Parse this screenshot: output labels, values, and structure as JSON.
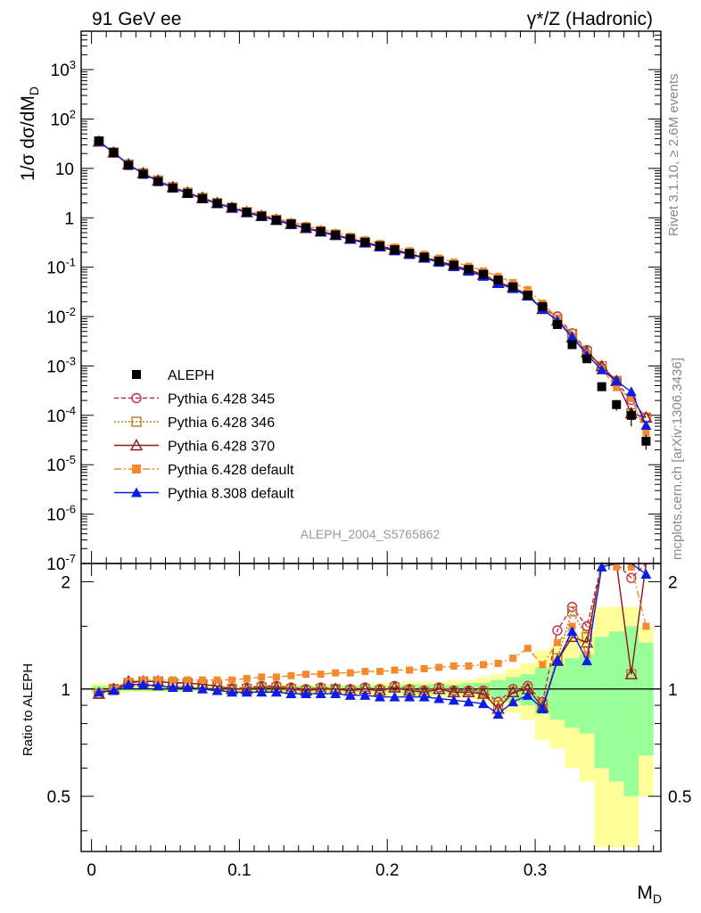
{
  "header": {
    "left_label": "91 GeV ee",
    "right_label": "γ*/Z (Hadronic)",
    "analysis_id": "ALEPH_2004_S5765862",
    "rivet_label": "Rivet 3.1.10, ≥ 2.6M events",
    "mcplots_label": "mcplots.cern.ch [arXiv:1306.3436]"
  },
  "chart_data": {
    "type": "scatter",
    "title": "",
    "xlabel": "M_D",
    "ylabel": "1/σ dσ/dM_D",
    "ratio_ylabel": "Ratio to ALEPH",
    "xlim": [
      -0.007,
      0.385
    ],
    "ylim": [
      1e-07,
      6000
    ],
    "ratio_ylim": [
      0.35,
      2.25
    ],
    "yscale": "log",
    "ratio_yscale": "log",
    "x_ticks": [
      0,
      0.1,
      0.2,
      0.3
    ],
    "x_tick_labels": [
      "0",
      "0.1",
      "0.2",
      "0.3"
    ],
    "y_tick_labels": [
      "10^-7",
      "10^-6",
      "10^-5",
      "10^-4",
      "10^-3",
      "10^-2",
      "10^-1",
      "1",
      "10",
      "10^2",
      "10^3"
    ],
    "ratio_ticks": [
      0.5,
      1,
      2
    ],
    "ratio_tick_labels": [
      "0.5",
      "1",
      "2"
    ],
    "legend_position": "lower-left",
    "x": [
      0.005,
      0.015,
      0.025,
      0.035,
      0.045,
      0.055,
      0.065,
      0.075,
      0.085,
      0.095,
      0.105,
      0.115,
      0.125,
      0.135,
      0.145,
      0.155,
      0.165,
      0.175,
      0.185,
      0.195,
      0.205,
      0.215,
      0.225,
      0.235,
      0.245,
      0.255,
      0.265,
      0.275,
      0.285,
      0.295,
      0.305,
      0.315,
      0.325,
      0.335,
      0.345,
      0.355,
      0.365,
      0.375
    ],
    "series": [
      {
        "name": "ALEPH",
        "color": "#000000",
        "marker": "square-filled",
        "values": [
          36,
          21,
          11.5,
          7.6,
          5.4,
          4.0,
          3.1,
          2.45,
          1.95,
          1.6,
          1.3,
          1.08,
          0.9,
          0.75,
          0.63,
          0.53,
          0.45,
          0.38,
          0.32,
          0.27,
          0.225,
          0.19,
          0.16,
          0.133,
          0.11,
          0.09,
          0.072,
          0.055,
          0.04,
          0.027,
          0.016,
          0.0069,
          0.0027,
          0.0014,
          0.00038,
          0.000165,
          0.0001,
          3e-05
        ],
        "errors": [
          0.8,
          0.4,
          0.2,
          0.12,
          0.08,
          0.06,
          0.05,
          0.04,
          0.03,
          0.025,
          0.02,
          0.017,
          0.014,
          0.012,
          0.01,
          0.009,
          0.008,
          0.007,
          0.006,
          0.005,
          0.004,
          0.0035,
          0.003,
          0.0025,
          0.002,
          0.0018,
          0.0015,
          0.0013,
          0.001,
          0.0008,
          0.0006,
          0.0003,
          0.0002,
          0.00012,
          6e-05,
          4e-05,
          4e-05,
          1e-05
        ]
      },
      {
        "name": "Pythia 6.428 345",
        "color": "#c03048",
        "dash": "5,3",
        "marker": "circle-open",
        "ratio": [
          0.97,
          1.0,
          1.04,
          1.05,
          1.05,
          1.04,
          1.04,
          1.03,
          1.02,
          1.0,
          1.01,
          1.02,
          1.02,
          1.01,
          1.0,
          1.01,
          1.0,
          1.0,
          1.01,
          1.0,
          1.02,
          1.0,
          0.99,
          1.01,
          0.99,
          0.99,
          0.99,
          0.92,
          1.0,
          1.02,
          0.92,
          1.46,
          1.7,
          1.5,
          2.4,
          2.9,
          2.05,
          3.0
        ]
      },
      {
        "name": "Pythia 6.428 346",
        "color": "#b87828",
        "dash": "2,2",
        "marker": "square-open",
        "ratio": [
          0.97,
          1.0,
          1.04,
          1.05,
          1.05,
          1.04,
          1.04,
          1.03,
          1.02,
          1.0,
          1.0,
          1.01,
          1.01,
          1.0,
          0.99,
          1.0,
          1.0,
          0.99,
          1.0,
          0.99,
          1.01,
          0.99,
          0.98,
          1.0,
          0.98,
          0.98,
          0.98,
          0.9,
          0.98,
          1.0,
          0.9,
          1.22,
          1.65,
          1.4,
          2.6,
          3.0,
          1.1,
          3.0
        ]
      },
      {
        "name": "Pythia 6.428 370",
        "color": "#8c1c1c",
        "dash": "",
        "marker": "triangle-open",
        "ratio": [
          0.97,
          1.0,
          1.05,
          1.05,
          1.05,
          1.04,
          1.04,
          1.03,
          1.02,
          1.0,
          1.0,
          1.01,
          1.01,
          1.0,
          0.99,
          1.0,
          1.0,
          0.99,
          1.0,
          0.99,
          1.01,
          0.99,
          0.98,
          1.0,
          0.98,
          0.98,
          0.97,
          0.88,
          0.98,
          1.0,
          0.89,
          1.2,
          1.4,
          1.35,
          2.6,
          3.0,
          1.1,
          3.0
        ]
      },
      {
        "name": "Pythia 6.428 default",
        "color": "#f58a2c",
        "dash": "8,3,2,3",
        "marker": "square-filled",
        "ratio": [
          0.98,
          1.0,
          1.05,
          1.06,
          1.06,
          1.06,
          1.06,
          1.06,
          1.06,
          1.06,
          1.07,
          1.08,
          1.08,
          1.09,
          1.1,
          1.1,
          1.11,
          1.11,
          1.12,
          1.12,
          1.13,
          1.13,
          1.14,
          1.15,
          1.16,
          1.16,
          1.17,
          1.18,
          1.22,
          1.3,
          1.17,
          1.35,
          1.5,
          1.25,
          2.3,
          2.2,
          2.2,
          1.5
        ]
      },
      {
        "name": "Pythia 8.308 default",
        "color": "#0a1ee6",
        "dash": "",
        "marker": "triangle-filled",
        "ratio": [
          0.98,
          0.99,
          1.03,
          1.03,
          1.02,
          1.01,
          1.01,
          1.0,
          0.99,
          0.98,
          0.98,
          0.98,
          0.98,
          0.97,
          0.97,
          0.97,
          0.97,
          0.96,
          0.96,
          0.95,
          0.95,
          0.95,
          0.95,
          0.94,
          0.93,
          0.92,
          0.91,
          0.85,
          0.92,
          0.96,
          0.88,
          1.2,
          1.45,
          1.2,
          2.2,
          3.0,
          3.0,
          2.1
        ]
      }
    ],
    "bands": {
      "yellow_color": "#ffff99",
      "green_color": "#99ff99",
      "yellow_halfwidth": [
        0.04,
        0.03,
        0.02,
        0.02,
        0.02,
        0.02,
        0.02,
        0.02,
        0.02,
        0.02,
        0.02,
        0.03,
        0.03,
        0.03,
        0.03,
        0.03,
        0.03,
        0.03,
        0.03,
        0.04,
        0.04,
        0.05,
        0.05,
        0.05,
        0.06,
        0.06,
        0.08,
        0.1,
        0.14,
        0.18,
        0.28,
        0.32,
        0.4,
        0.45,
        0.7,
        0.7,
        0.7,
        0.5
      ],
      "green_halfwidth": [
        0.02,
        0.02,
        0.01,
        0.01,
        0.01,
        0.01,
        0.01,
        0.01,
        0.01,
        0.01,
        0.01,
        0.02,
        0.02,
        0.02,
        0.02,
        0.02,
        0.02,
        0.02,
        0.02,
        0.02,
        0.02,
        0.03,
        0.03,
        0.03,
        0.03,
        0.04,
        0.04,
        0.06,
        0.08,
        0.1,
        0.15,
        0.18,
        0.22,
        0.25,
        0.4,
        0.45,
        0.5,
        0.35
      ]
    }
  }
}
